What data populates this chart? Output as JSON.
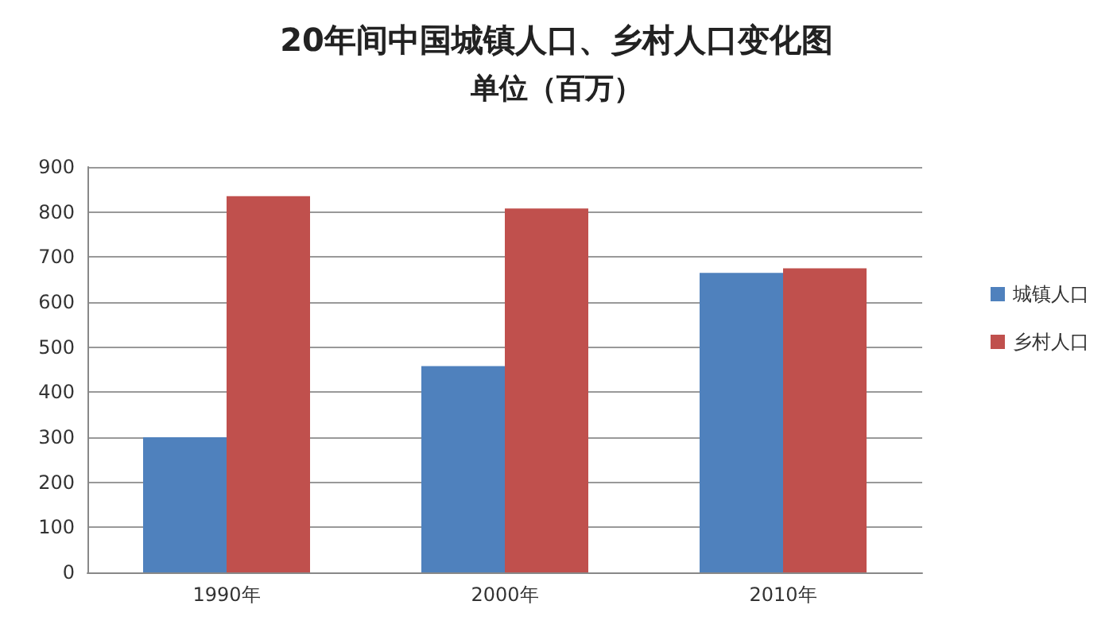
{
  "chart_data": {
    "type": "bar",
    "title": "20年间中国城镇人口、乡村人口变化图",
    "subtitle": "单位（百万）",
    "categories": [
      "1990年",
      "2000年",
      "2010年"
    ],
    "series": [
      {
        "name": "城镇人口",
        "color": "#4f81bd",
        "values": [
          300,
          458,
          665
        ]
      },
      {
        "name": "乡村人口",
        "color": "#c0504d",
        "values": [
          835,
          808,
          675
        ]
      }
    ],
    "ylim": [
      0,
      900
    ],
    "yticks": [
      0,
      100,
      200,
      300,
      400,
      500,
      600,
      700,
      800,
      900
    ],
    "grid": "y",
    "legend": "right"
  }
}
